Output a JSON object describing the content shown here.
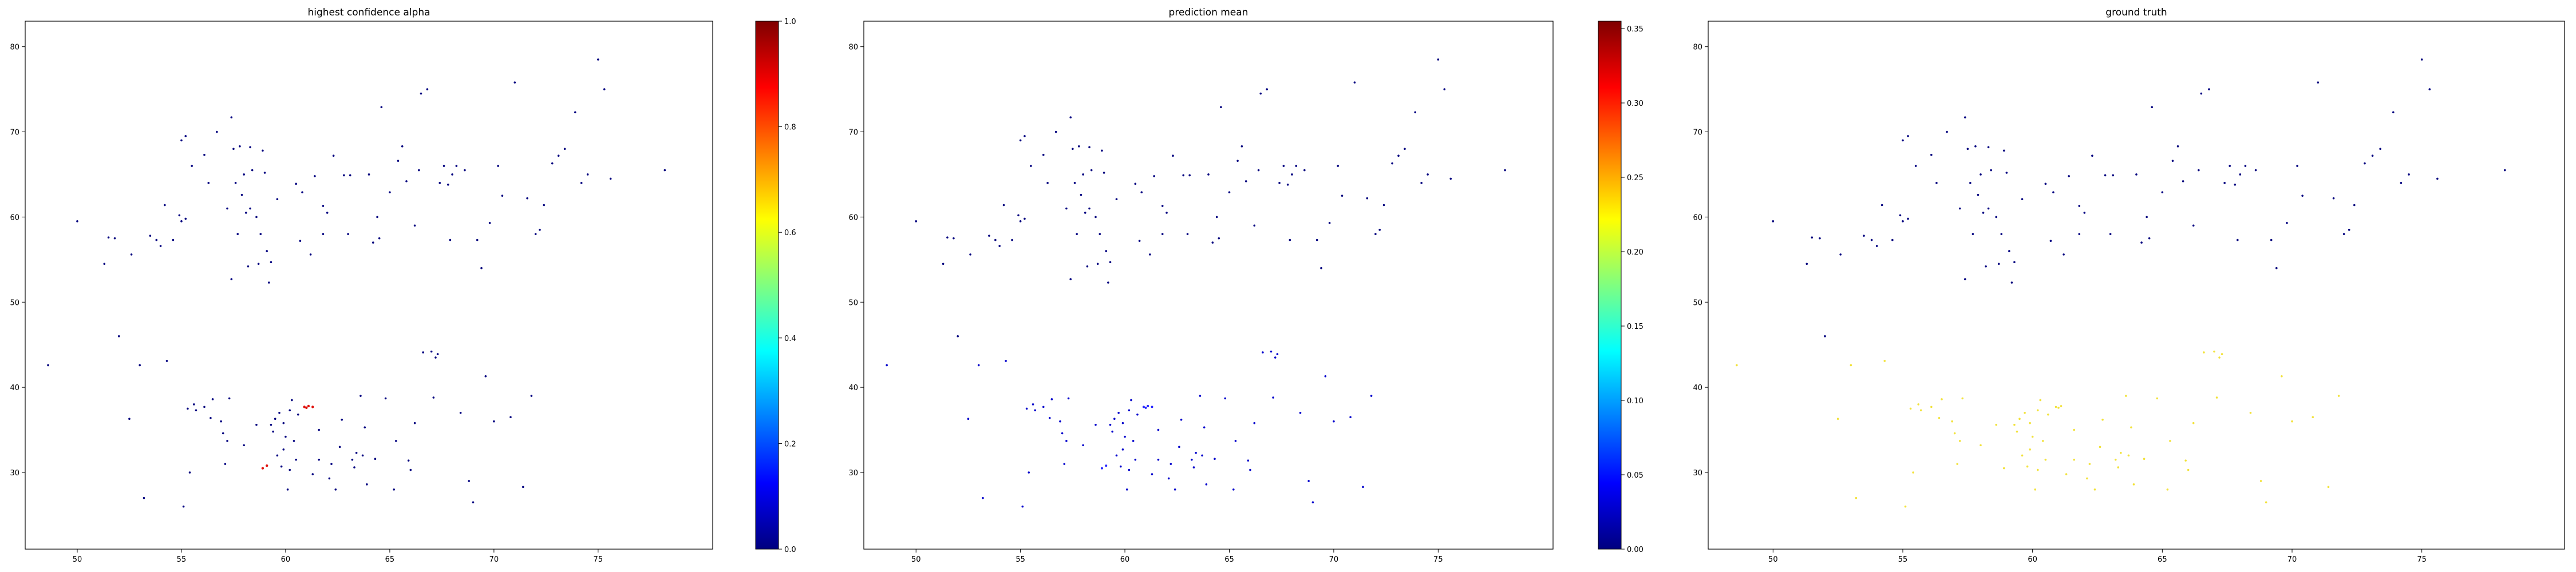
{
  "chart_data": [
    {
      "type": "scatter",
      "title": "highest confidence alpha",
      "xlabel": "",
      "ylabel": "",
      "xlim": [
        47.5,
        80.5
      ],
      "ylim": [
        21,
        83
      ],
      "x_ticks": [
        50,
        55,
        60,
        65,
        70,
        75
      ],
      "y_ticks": [
        30,
        40,
        50,
        60,
        70,
        80
      ],
      "grid": false,
      "colorbar": {
        "cmap": "jet",
        "vmin": 0.0,
        "vmax": 1.0,
        "ticks": [
          0.0,
          0.2,
          0.4,
          0.6,
          0.8,
          1.0
        ]
      },
      "point_color_rule": "mostly dark blue (value near 0.0); a few points in the lower cluster are red (value near 1.0)"
    },
    {
      "type": "scatter",
      "title": "prediction mean",
      "xlabel": "",
      "ylabel": "",
      "xlim": [
        47.5,
        80.5
      ],
      "ylim": [
        21,
        83
      ],
      "x_ticks": [
        50,
        55,
        60,
        65,
        70,
        75
      ],
      "y_ticks": [
        30,
        40,
        50,
        60,
        70,
        80
      ],
      "grid": false,
      "colorbar": {
        "cmap": "jet",
        "vmin": 0.0,
        "vmax": 0.355,
        "ticks": [
          0.0,
          0.05,
          0.1,
          0.15,
          0.2,
          0.25,
          0.3,
          0.35
        ]
      },
      "point_color_rule": "dark blue points, medium blue in the lower cluster"
    },
    {
      "type": "scatter",
      "title": "ground truth",
      "xlabel": "",
      "ylabel": "",
      "xlim": [
        47.5,
        80.5
      ],
      "ylim": [
        21,
        83
      ],
      "x_ticks": [
        50,
        55,
        60,
        65,
        70,
        75
      ],
      "y_ticks": [
        30,
        40,
        50,
        60,
        70,
        80
      ],
      "grid": false,
      "point_color_rule": "upper cluster dark blue; lower cluster (y < 46) yellow"
    }
  ],
  "points": [
    [
      48.6,
      42.6
    ],
    [
      50.0,
      59.5
    ],
    [
      51.3,
      54.5
    ],
    [
      51.5,
      57.6
    ],
    [
      51.8,
      57.5
    ],
    [
      52.0,
      46.0
    ],
    [
      52.5,
      36.3
    ],
    [
      53.0,
      42.6
    ],
    [
      53.2,
      27.0
    ],
    [
      53.5,
      57.8
    ],
    [
      53.8,
      57.3
    ],
    [
      54.0,
      56.6
    ],
    [
      54.3,
      43.1
    ],
    [
      54.6,
      57.3
    ],
    [
      54.9,
      60.2
    ],
    [
      55.0,
      59.5
    ],
    [
      55.1,
      26.0
    ],
    [
      55.2,
      59.8
    ],
    [
      55.3,
      37.5
    ],
    [
      55.4,
      30.0
    ],
    [
      55.0,
      69.0
    ],
    [
      55.2,
      69.5
    ],
    [
      55.5,
      66.0
    ],
    [
      55.6,
      38.0
    ],
    [
      55.7,
      37.3
    ],
    [
      56.1,
      37.7
    ],
    [
      56.3,
      64.0
    ],
    [
      56.5,
      38.6
    ],
    [
      56.7,
      70.0
    ],
    [
      56.9,
      36.0
    ],
    [
      57.0,
      34.6
    ],
    [
      57.2,
      61.0
    ],
    [
      57.3,
      38.7
    ],
    [
      57.4,
      52.7
    ],
    [
      57.5,
      68.0
    ],
    [
      57.6,
      64.0
    ],
    [
      57.7,
      58.0
    ],
    [
      57.8,
      68.3
    ],
    [
      57.9,
      62.6
    ],
    [
      58.0,
      65.0
    ],
    [
      58.1,
      60.5
    ],
    [
      58.2,
      54.2
    ],
    [
      58.3,
      61.0
    ],
    [
      58.4,
      65.5
    ],
    [
      58.6,
      60.0
    ],
    [
      58.7,
      54.5
    ],
    [
      58.8,
      58.0
    ],
    [
      58.9,
      30.5
    ],
    [
      59.0,
      65.2
    ],
    [
      59.1,
      56.0
    ],
    [
      59.2,
      52.3
    ],
    [
      59.3,
      35.6
    ],
    [
      59.4,
      34.8
    ],
    [
      59.5,
      36.3
    ],
    [
      59.6,
      32.0
    ],
    [
      59.7,
      37.0
    ],
    [
      59.8,
      30.7
    ],
    [
      59.9,
      35.8
    ],
    [
      60.0,
      34.2
    ],
    [
      60.1,
      28.0
    ],
    [
      60.2,
      30.3
    ],
    [
      60.3,
      38.5
    ],
    [
      60.4,
      33.7
    ],
    [
      60.5,
      31.5
    ],
    [
      60.6,
      36.8
    ],
    [
      60.7,
      57.2
    ],
    [
      60.8,
      62.9
    ],
    [
      60.9,
      37.7
    ],
    [
      61.0,
      37.6
    ],
    [
      61.1,
      37.8
    ],
    [
      61.2,
      55.6
    ],
    [
      61.3,
      29.8
    ],
    [
      61.4,
      64.8
    ],
    [
      61.6,
      31.5
    ],
    [
      61.8,
      61.3
    ],
    [
      62.0,
      60.5
    ],
    [
      62.2,
      31.0
    ],
    [
      62.4,
      28.0
    ],
    [
      62.6,
      33.0
    ],
    [
      62.8,
      64.9
    ],
    [
      63.0,
      58.0
    ],
    [
      63.2,
      31.5
    ],
    [
      63.4,
      32.3
    ],
    [
      63.6,
      39.0
    ],
    [
      63.7,
      32.0
    ],
    [
      63.8,
      35.3
    ],
    [
      63.9,
      28.6
    ],
    [
      64.0,
      65.0
    ],
    [
      64.2,
      57.0
    ],
    [
      64.4,
      60.0
    ],
    [
      64.6,
      72.9
    ],
    [
      64.8,
      38.7
    ],
    [
      65.0,
      62.9
    ],
    [
      65.2,
      28.0
    ],
    [
      65.4,
      66.6
    ],
    [
      65.6,
      68.3
    ],
    [
      65.8,
      64.2
    ],
    [
      66.0,
      30.3
    ],
    [
      66.2,
      35.8
    ],
    [
      66.4,
      65.5
    ],
    [
      66.5,
      74.5
    ],
    [
      66.6,
      44.1
    ],
    [
      66.8,
      75.0
    ],
    [
      67.0,
      44.2
    ],
    [
      67.2,
      43.5
    ],
    [
      67.3,
      43.9
    ],
    [
      67.4,
      64.0
    ],
    [
      67.6,
      66.0
    ],
    [
      67.8,
      63.8
    ],
    [
      68.0,
      65.0
    ],
    [
      68.2,
      66.0
    ],
    [
      68.4,
      37.0
    ],
    [
      68.6,
      65.5
    ],
    [
      68.8,
      29.0
    ],
    [
      69.0,
      26.5
    ],
    [
      69.2,
      57.3
    ],
    [
      69.4,
      54.0
    ],
    [
      69.6,
      41.3
    ],
    [
      69.8,
      59.3
    ],
    [
      70.0,
      36.0
    ],
    [
      70.2,
      66.0
    ],
    [
      70.4,
      62.5
    ],
    [
      70.8,
      36.5
    ],
    [
      71.0,
      75.8
    ],
    [
      71.4,
      28.3
    ],
    [
      71.6,
      62.2
    ],
    [
      71.8,
      39.0
    ],
    [
      72.0,
      58.0
    ],
    [
      72.2,
      58.5
    ],
    [
      72.4,
      61.4
    ],
    [
      72.8,
      66.3
    ],
    [
      73.1,
      67.2
    ],
    [
      73.4,
      68.0
    ],
    [
      73.9,
      72.3
    ],
    [
      74.2,
      64.0
    ],
    [
      74.5,
      65.0
    ],
    [
      75.0,
      78.5
    ],
    [
      75.3,
      75.0
    ],
    [
      75.6,
      64.5
    ],
    [
      78.2,
      65.5
    ],
    [
      59.3,
      54.7
    ],
    [
      58.3,
      68.2
    ],
    [
      60.5,
      63.9
    ],
    [
      57.2,
      33.7
    ],
    [
      58.6,
      35.6
    ],
    [
      61.8,
      58.0
    ],
    [
      64.5,
      57.5
    ],
    [
      63.3,
      30.6
    ],
    [
      62.7,
      36.2
    ],
    [
      59.9,
      32.7
    ],
    [
      58.0,
      33.2
    ],
    [
      60.2,
      37.3
    ],
    [
      61.6,
      35.0
    ],
    [
      62.1,
      29.3
    ],
    [
      64.3,
      31.6
    ],
    [
      65.9,
      31.4
    ],
    [
      56.4,
      36.4
    ],
    [
      57.1,
      31.0
    ],
    [
      66.2,
      59.0
    ],
    [
      67.9,
      57.3
    ],
    [
      63.1,
      64.9
    ],
    [
      62.3,
      67.2
    ],
    [
      57.4,
      71.7
    ],
    [
      56.1,
      67.3
    ],
    [
      58.9,
      67.8
    ],
    [
      59.6,
      62.1
    ],
    [
      54.2,
      61.4
    ],
    [
      52.6,
      55.6
    ],
    [
      67.1,
      38.8
    ],
    [
      65.3,
      33.7
    ]
  ],
  "hot_points": [
    [
      61.0,
      37.6
    ],
    [
      61.1,
      37.8
    ],
    [
      60.9,
      37.7
    ],
    [
      58.9,
      30.5
    ],
    [
      59.1,
      30.8
    ],
    [
      61.3,
      37.7
    ]
  ]
}
